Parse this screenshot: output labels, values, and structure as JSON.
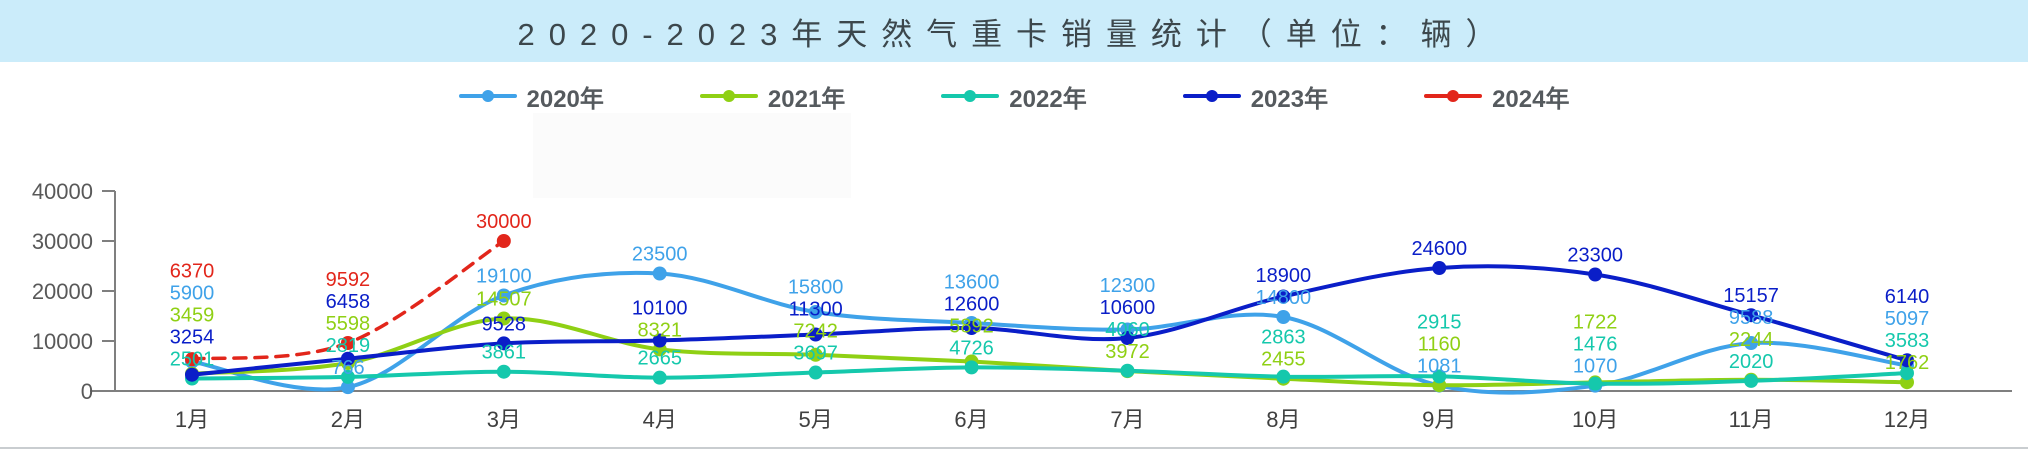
{
  "title": {
    "text": "2020-2023年天然气重卡销量统计（单位：辆）"
  },
  "legend": {
    "items": [
      {
        "label": "2020年",
        "color": "#3fa2e9"
      },
      {
        "label": "2021年",
        "color": "#8fd014"
      },
      {
        "label": "2022年",
        "color": "#15c8ac"
      },
      {
        "label": "2023年",
        "color": "#0a1ec8"
      },
      {
        "label": "2024年",
        "color": "#e2261b"
      }
    ]
  },
  "chart_data": {
    "type": "line",
    "title": "2020-2023年天然气重卡销量统计（单位：辆）",
    "categories": [
      "1月",
      "2月",
      "3月",
      "4月",
      "5月",
      "6月",
      "7月",
      "8月",
      "9月",
      "10月",
      "11月",
      "12月"
    ],
    "series": [
      {
        "name": "2020年",
        "color": "#3fa2e9",
        "dashed": false,
        "values": [
          5900,
          766,
          19100,
          23500,
          15800,
          13600,
          12300,
          14800,
          1081,
          1070,
          9588,
          5097
        ]
      },
      {
        "name": "2021年",
        "color": "#8fd014",
        "dashed": false,
        "values": [
          3459,
          5598,
          14507,
          8321,
          7242,
          5892,
          3972,
          2455,
          1160,
          1722,
          2244,
          1762
        ]
      },
      {
        "name": "2022年",
        "color": "#15c8ac",
        "dashed": false,
        "values": [
          2501,
          2819,
          3861,
          2665,
          3697,
          4726,
          4060,
          2863,
          2915,
          1476,
          2020,
          3583
        ]
      },
      {
        "name": "2023年",
        "color": "#0a1ec8",
        "dashed": false,
        "values": [
          3254,
          6458,
          9528,
          10100,
          11300,
          12600,
          10600,
          18900,
          24600,
          23300,
          15157,
          6140
        ]
      },
      {
        "name": "2024年",
        "color": "#e2261b",
        "dashed": true,
        "values": [
          6370,
          9592,
          30000,
          null,
          null,
          null,
          null,
          null,
          null,
          null,
          null,
          null
        ]
      }
    ],
    "yticks": [
      0,
      10000,
      20000,
      30000,
      40000
    ],
    "ylim": [
      0,
      40000
    ],
    "xlabel": "",
    "ylabel": "",
    "grid": false,
    "legend_position": "top",
    "data_labels": true
  }
}
